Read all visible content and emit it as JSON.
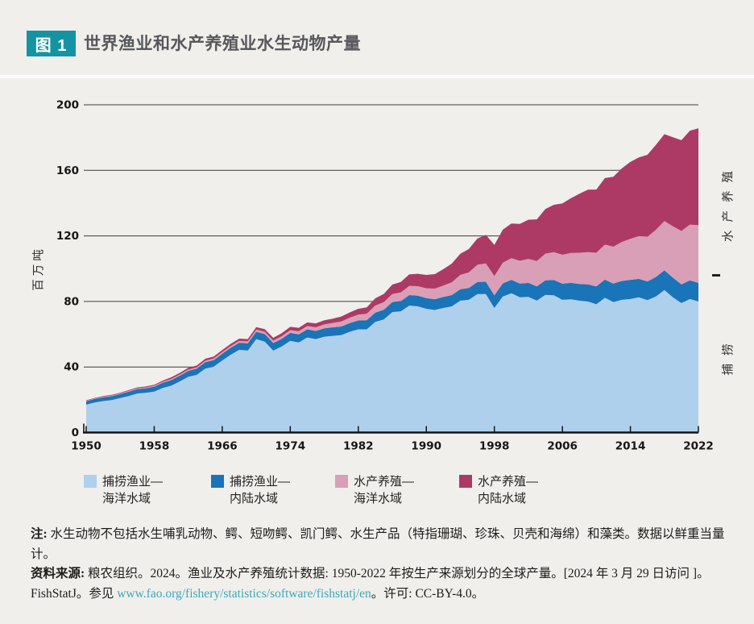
{
  "header": {
    "figure_label": "图 1",
    "title": "世界渔业和水产养殖业水生动物产量"
  },
  "colors": {
    "background": "#f0efec",
    "badge_teal": "#1494a3",
    "link_teal": "#38aab9",
    "gridline": "#3d3d3d",
    "axis": "#141414",
    "marine_capture": "#aed0ec",
    "inland_capture": "#1974b8",
    "marine_aquaculture": "#d89fb7",
    "inland_aquaculture": "#ad3a64"
  },
  "chart_data": {
    "type": "area",
    "stacked": true,
    "title": "世界渔业和水产养殖业水生动物产量",
    "ylabel": "百万吨",
    "xlabel": "",
    "ylim": [
      0,
      200
    ],
    "y_ticks": [
      0,
      40,
      80,
      120,
      160,
      200
    ],
    "x_ticks": [
      1950,
      1958,
      1966,
      1974,
      1982,
      1990,
      1998,
      2006,
      2014,
      2022
    ],
    "x_start": 1950,
    "x_end": 2022,
    "grid": "horizontal",
    "legend_position": "bottom",
    "units": "million tonnes, live weight equivalent",
    "series": [
      {
        "id": "marine-capture",
        "name": "捕捞渔业—海洋水域",
        "color": "#aed0ec",
        "values": [
          17.0,
          18.3,
          19.2,
          19.8,
          21.0,
          22.3,
          23.8,
          24.2,
          25.0,
          27.2,
          28.6,
          31.2,
          34.0,
          35.2,
          39.0,
          40.2,
          44.0,
          47.5,
          50.5,
          50.0,
          57.0,
          55.5,
          50.0,
          52.5,
          56.0,
          55.0,
          58.0,
          57.0,
          58.5,
          59.0,
          59.5,
          61.5,
          63.0,
          63.0,
          67.5,
          69.0,
          73.5,
          74.0,
          77.5,
          77.0,
          75.5,
          74.8,
          76.0,
          77.0,
          80.5,
          81.0,
          84.5,
          84.5,
          76.0,
          83.0,
          85.0,
          82.5,
          82.8,
          80.5,
          84.0,
          83.8,
          81.0,
          81.3,
          80.5,
          80.0,
          78.3,
          82.2,
          79.7,
          81.0,
          81.5,
          82.5,
          80.8,
          83.0,
          87.0,
          82.5,
          79.0,
          81.5,
          80.0
        ]
      },
      {
        "id": "inland-capture",
        "name": "捕捞渔业—内陆水域",
        "color": "#1974b8",
        "values": [
          2.1,
          2.2,
          2.3,
          2.4,
          2.5,
          2.6,
          2.7,
          2.8,
          3.0,
          3.2,
          3.4,
          3.5,
          3.6,
          3.8,
          3.9,
          4.0,
          4.1,
          4.2,
          4.3,
          4.4,
          4.5,
          4.6,
          4.6,
          4.7,
          4.8,
          4.9,
          5.0,
          5.0,
          5.1,
          5.2,
          5.2,
          5.3,
          5.4,
          5.6,
          5.7,
          5.9,
          6.1,
          6.2,
          6.4,
          6.5,
          6.5,
          6.6,
          6.7,
          6.9,
          7.0,
          7.2,
          7.4,
          7.5,
          7.7,
          8.0,
          8.2,
          8.4,
          8.5,
          8.7,
          8.9,
          9.3,
          9.8,
          10.0,
          10.2,
          10.4,
          10.9,
          11.1,
          11.2,
          11.5,
          11.7,
          11.3,
          11.4,
          11.9,
          12.0,
          12.0,
          11.4,
          11.4,
          11.3
        ]
      },
      {
        "id": "marine-aquaculture",
        "name": "水产养殖—海洋水域",
        "color": "#d89fb7",
        "values": [
          0.3,
          0.3,
          0.4,
          0.4,
          0.4,
          0.5,
          0.5,
          0.5,
          0.6,
          0.6,
          0.7,
          0.7,
          0.8,
          0.8,
          0.9,
          1.0,
          1.0,
          1.1,
          1.1,
          1.2,
          1.3,
          1.4,
          1.5,
          1.6,
          1.7,
          1.9,
          2.0,
          2.2,
          2.4,
          2.7,
          3.1,
          3.3,
          3.6,
          3.9,
          4.3,
          4.7,
          5.0,
          5.3,
          5.6,
          5.8,
          6.0,
          6.4,
          7.0,
          7.8,
          8.7,
          9.5,
          10.5,
          11.2,
          11.8,
          12.6,
          13.2,
          13.9,
          14.7,
          15.5,
          16.3,
          17.0,
          17.7,
          18.3,
          19.0,
          19.7,
          20.5,
          21.4,
          22.5,
          23.8,
          25.0,
          26.1,
          27.3,
          28.8,
          30.1,
          31.4,
          32.6,
          34.0,
          35.3
        ]
      },
      {
        "id": "inland-aquaculture",
        "name": "水产养殖—内陆水域",
        "color": "#ad3a64",
        "values": [
          0.3,
          0.3,
          0.4,
          0.4,
          0.4,
          0.5,
          0.5,
          0.6,
          0.6,
          0.7,
          1.0,
          1.0,
          1.1,
          1.1,
          1.2,
          1.2,
          1.3,
          1.3,
          1.4,
          1.4,
          1.5,
          1.6,
          1.7,
          1.8,
          2.0,
          2.1,
          2.2,
          2.4,
          2.5,
          2.6,
          3.0,
          3.2,
          3.5,
          3.9,
          4.4,
          5.0,
          5.7,
          6.4,
          7.1,
          7.6,
          8.2,
          8.9,
          10.0,
          11.4,
          12.9,
          14.3,
          16.0,
          17.5,
          19.0,
          20.2,
          21.2,
          22.5,
          23.9,
          25.4,
          27.2,
          28.9,
          31.3,
          33.4,
          36.0,
          38.1,
          38.6,
          40.6,
          42.7,
          45.0,
          47.0,
          48.0,
          50.0,
          51.8,
          53.0,
          54.3,
          55.4,
          57.3,
          59.1
        ]
      }
    ],
    "right_annotations": {
      "aquaculture": "水产养殖",
      "capture": "捕捞"
    }
  },
  "legend": {
    "items": [
      {
        "line1": "捕捞渔业—",
        "line2": "海洋水域",
        "color": "#aed0ec"
      },
      {
        "line1": "捕捞渔业—",
        "line2": "内陆水域",
        "color": "#1974b8"
      },
      {
        "line1": "水产养殖—",
        "line2": "海洋水域",
        "color": "#d89fb7"
      },
      {
        "line1": "水产养殖—",
        "line2": "内陆水域",
        "color": "#ad3a64"
      }
    ]
  },
  "notes": {
    "note_prefix": "注:",
    "note_text": " 水生动物不包括水生哺乳动物、鳄、短吻鳄、凯门鳄、水生产品（特指珊瑚、珍珠、贝壳和海绵）和藻类。数据以鲜重当量计。",
    "source_prefix": "资料来源:",
    "source_text": " 粮农组织。2024。渔业及水产养殖统计数据: 1950-2022 年按生产来源划分的全球产量。[2024 年 3 月 29 日访问 ]。FishStatJ。参见 ",
    "source_link": "www.fao.org/fishery/statistics/software/fishstatj/en",
    "source_suffix": "。许可: CC-BY-4.0。"
  }
}
